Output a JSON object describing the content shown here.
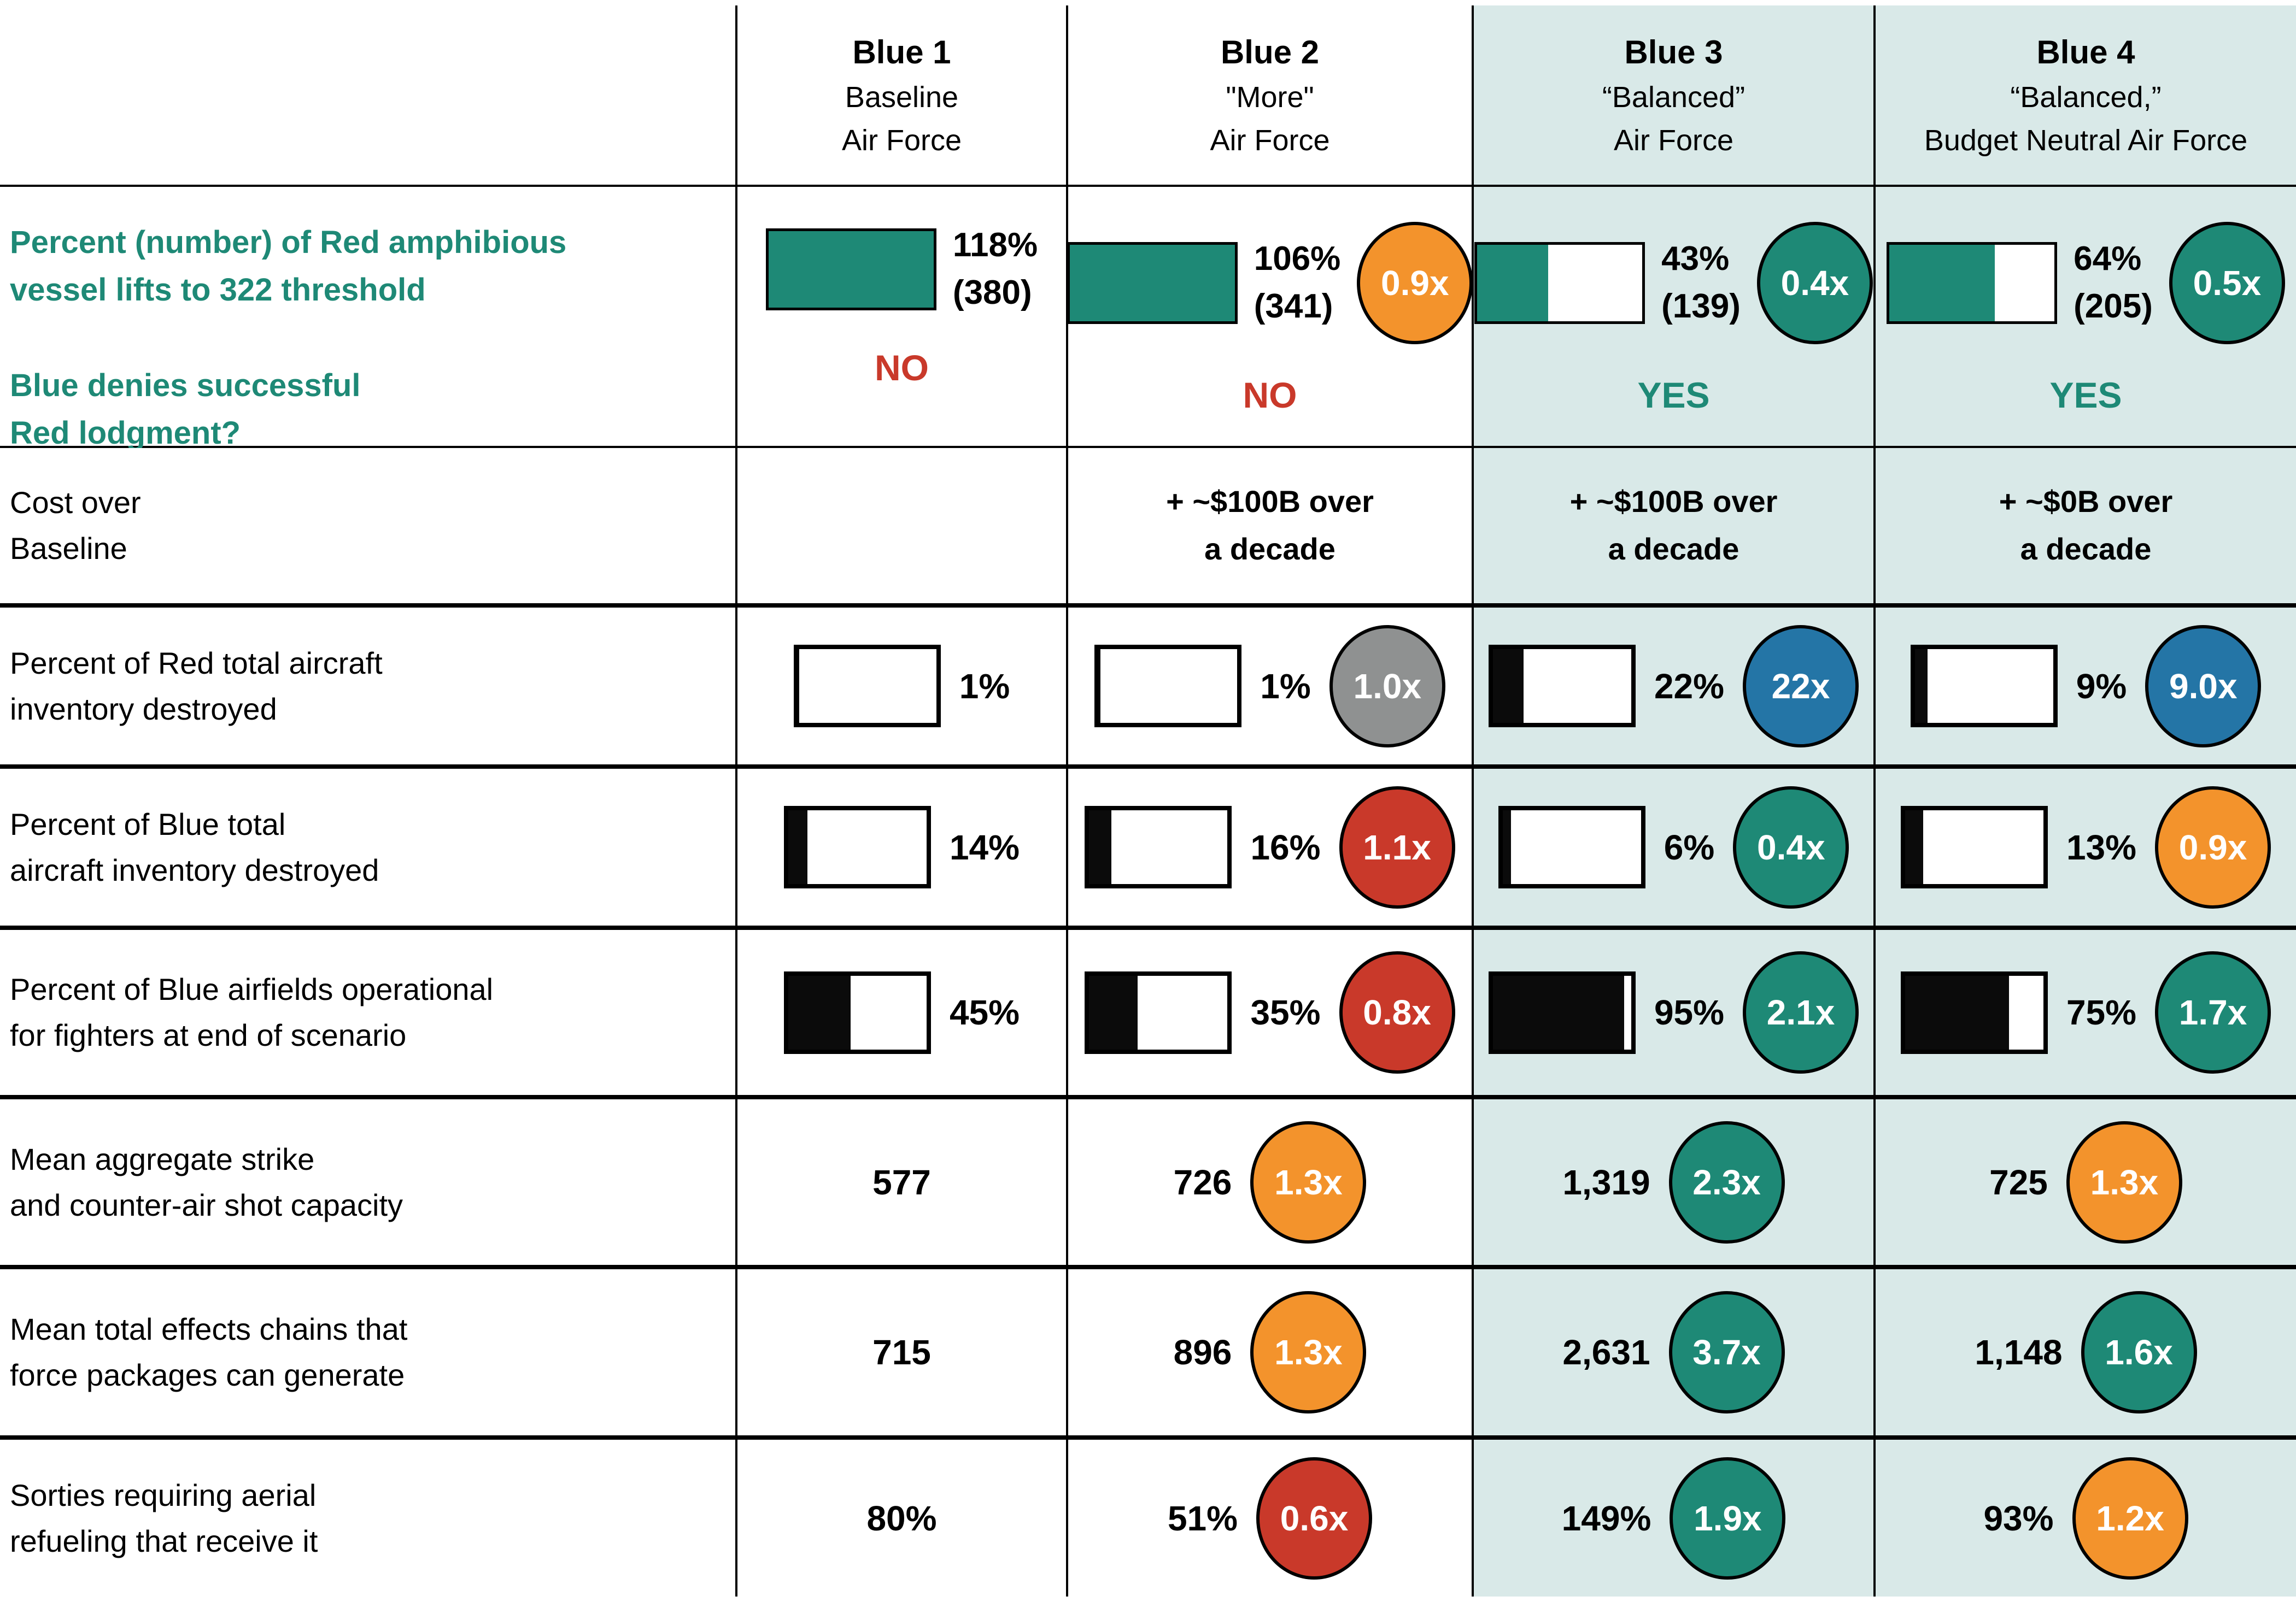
{
  "palette": {
    "teal": "#1e8976",
    "orange": "#f3932c",
    "red": "#c9392a",
    "gray": "#8f9191",
    "blue": "#2475a6",
    "shaded_bg": "#d9e9e8",
    "bar_black": "#0b0b0b"
  },
  "header": {
    "columns": [
      {
        "title": "Blue 1",
        "line2": "Baseline",
        "line3": "Air Force"
      },
      {
        "title": "Blue 2",
        "line2": "\"More\"",
        "line3": "Air Force"
      },
      {
        "title": "Blue 3",
        "line2": "“Balanced”",
        "line3": "Air Force"
      },
      {
        "title": "Blue 4",
        "line2": "“Balanced,”",
        "line3": "Budget Neutral Air Force"
      }
    ]
  },
  "rows": {
    "vessel": {
      "label_line1": "Percent (number) of Red amphibious",
      "label_line2": "vessel lifts to 322 threshold",
      "question_line1": "Blue denies successful",
      "question_line2": "Red lodgment?",
      "cells": [
        {
          "pct": "118%",
          "count": "(380)",
          "bar_fill": "100%",
          "bar_color": "#1e8976",
          "verdict": "NO",
          "verdict_color": "#c9392a"
        },
        {
          "pct": "106%",
          "count": "(341)",
          "bar_fill": "100%",
          "bar_color": "#1e8976",
          "ratio": "0.9x",
          "ratio_color": "#f3932c",
          "verdict": "NO",
          "verdict_color": "#c9392a"
        },
        {
          "pct": "43%",
          "count": "(139)",
          "bar_fill": "43%",
          "bar_color": "#1e8976",
          "ratio": "0.4x",
          "ratio_color": "#1e8976",
          "verdict": "YES",
          "verdict_color": "#1e8976"
        },
        {
          "pct": "64%",
          "count": "(205)",
          "bar_fill": "64%",
          "bar_color": "#1e8976",
          "ratio": "0.5x",
          "ratio_color": "#1e8976",
          "verdict": "YES",
          "verdict_color": "#1e8976"
        }
      ]
    },
    "cost": {
      "label_line1": "Cost over",
      "label_line2": "Baseline",
      "cells": [
        {
          "line1": "",
          "line2": ""
        },
        {
          "line1": "+ ~$100B over",
          "line2": "a decade"
        },
        {
          "line1": "+ ~$100B over",
          "line2": "a decade"
        },
        {
          "line1": "+ ~$0B over",
          "line2": "a decade"
        }
      ]
    },
    "red_destroyed": {
      "label_line1": "Percent of Red total aircraft",
      "label_line2": "inventory destroyed",
      "cells": [
        {
          "pct": "1%",
          "bar_fill": "1%",
          "bar_color": "#0b0b0b"
        },
        {
          "pct": "1%",
          "bar_fill": "1%",
          "bar_color": "#0b0b0b",
          "ratio": "1.0x",
          "ratio_color": "#8f9191"
        },
        {
          "pct": "22%",
          "bar_fill": "22%",
          "bar_color": "#0b0b0b",
          "ratio": "22x",
          "ratio_color": "#2475a6"
        },
        {
          "pct": "9%",
          "bar_fill": "9%",
          "bar_color": "#0b0b0b",
          "ratio": "9.0x",
          "ratio_color": "#2475a6"
        }
      ]
    },
    "blue_destroyed": {
      "label_line1": "Percent of Blue total",
      "label_line2": "aircraft inventory destroyed",
      "cells": [
        {
          "pct": "14%",
          "bar_fill": "14%",
          "bar_color": "#0b0b0b"
        },
        {
          "pct": "16%",
          "bar_fill": "16%",
          "bar_color": "#0b0b0b",
          "ratio": "1.1x",
          "ratio_color": "#c9392a"
        },
        {
          "pct": "6%",
          "bar_fill": "6%",
          "bar_color": "#0b0b0b",
          "ratio": "0.4x",
          "ratio_color": "#1e8976"
        },
        {
          "pct": "13%",
          "bar_fill": "13%",
          "bar_color": "#0b0b0b",
          "ratio": "0.9x",
          "ratio_color": "#f3932c"
        }
      ]
    },
    "airfields": {
      "label_line1": "Percent of Blue airfields operational",
      "label_line2": "for fighters at end of scenario",
      "cells": [
        {
          "pct": "45%",
          "bar_fill": "45%",
          "bar_color": "#0b0b0b"
        },
        {
          "pct": "35%",
          "bar_fill": "35%",
          "bar_color": "#0b0b0b",
          "ratio": "0.8x",
          "ratio_color": "#c9392a"
        },
        {
          "pct": "95%",
          "bar_fill": "95%",
          "bar_color": "#0b0b0b",
          "ratio": "2.1x",
          "ratio_color": "#1e8976"
        },
        {
          "pct": "75%",
          "bar_fill": "75%",
          "bar_color": "#0b0b0b",
          "ratio": "1.7x",
          "ratio_color": "#1e8976"
        }
      ]
    },
    "shots": {
      "label_line1": "Mean aggregate strike",
      "label_line2": "and counter-air shot capacity",
      "cells": [
        {
          "value": "577"
        },
        {
          "value": "726",
          "ratio": "1.3x",
          "ratio_color": "#f3932c"
        },
        {
          "value": "1,319",
          "ratio": "2.3x",
          "ratio_color": "#1e8976"
        },
        {
          "value": "725",
          "ratio": "1.3x",
          "ratio_color": "#f3932c"
        }
      ]
    },
    "chains": {
      "label_line1": "Mean total effects chains that",
      "label_line2": "force packages can generate",
      "cells": [
        {
          "value": "715"
        },
        {
          "value": "896",
          "ratio": "1.3x",
          "ratio_color": "#f3932c"
        },
        {
          "value": "2,631",
          "ratio": "3.7x",
          "ratio_color": "#1e8976"
        },
        {
          "value": "1,148",
          "ratio": "1.6x",
          "ratio_color": "#1e8976"
        }
      ]
    },
    "refuel": {
      "label_line1": "Sorties requiring aerial",
      "label_line2": "refueling that receive it",
      "cells": [
        {
          "value": "80%"
        },
        {
          "value": "51%",
          "ratio": "0.6x",
          "ratio_color": "#c9392a"
        },
        {
          "value": "149%",
          "ratio": "1.9x",
          "ratio_color": "#1e8976"
        },
        {
          "value": "93%",
          "ratio": "1.2x",
          "ratio_color": "#f3932c"
        }
      ]
    }
  },
  "chart_data": {
    "type": "table",
    "columns": [
      "Blue 1 Baseline Air Force",
      "Blue 2 \"More\" Air Force",
      "Blue 3 “Balanced” Air Force",
      "Blue 4 “Balanced,” Budget Neutral Air Force"
    ],
    "metrics": [
      {
        "label": "Percent (number) of Red amphibious vessel lifts to 322 threshold",
        "values_pct": [
          118,
          106,
          43,
          64
        ],
        "values_count": [
          380,
          341,
          139,
          205
        ],
        "ratio_vs_baseline": [
          null,
          "0.9x",
          "0.4x",
          "0.5x"
        ],
        "blue_denies_red_lodgment": [
          "NO",
          "NO",
          "YES",
          "YES"
        ]
      },
      {
        "label": "Cost over Baseline",
        "values": [
          null,
          "+ ~$100B over a decade",
          "+ ~$100B over a decade",
          "+ ~$0B over a decade"
        ]
      },
      {
        "label": "Percent of Red total aircraft inventory destroyed",
        "values_pct": [
          1,
          1,
          22,
          9
        ],
        "ratio_vs_baseline": [
          null,
          "1.0x",
          "22x",
          "9.0x"
        ]
      },
      {
        "label": "Percent of Blue total aircraft inventory destroyed",
        "values_pct": [
          14,
          16,
          6,
          13
        ],
        "ratio_vs_baseline": [
          null,
          "1.1x",
          "0.4x",
          "0.9x"
        ]
      },
      {
        "label": "Percent of Blue airfields operational for fighters at end of scenario",
        "values_pct": [
          45,
          35,
          95,
          75
        ],
        "ratio_vs_baseline": [
          null,
          "0.8x",
          "2.1x",
          "1.7x"
        ]
      },
      {
        "label": "Mean aggregate strike and counter-air shot capacity",
        "values": [
          577,
          726,
          1319,
          725
        ],
        "ratio_vs_baseline": [
          null,
          "1.3x",
          "2.3x",
          "1.3x"
        ]
      },
      {
        "label": "Mean total effects chains that force packages can generate",
        "values": [
          715,
          896,
          2631,
          1148
        ],
        "ratio_vs_baseline": [
          null,
          "1.3x",
          "3.7x",
          "1.6x"
        ]
      },
      {
        "label": "Sorties requiring aerial refueling that receive it",
        "values_pct": [
          80,
          51,
          149,
          93
        ],
        "ratio_vs_baseline": [
          null,
          "0.6x",
          "1.9x",
          "1.2x"
        ]
      }
    ]
  }
}
